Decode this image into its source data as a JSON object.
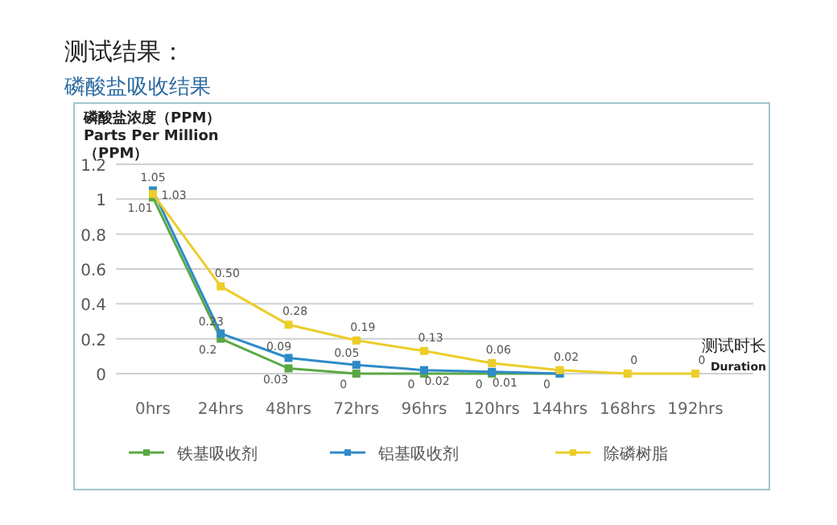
{
  "chart_data": {
    "type": "line",
    "title": "测试结果：",
    "subtitle": "磷酸盐吸收结果",
    "ylabel": "磷酸盐浓度（PPM）\nParts Per Million\n（PPM）",
    "xlabel": "测试时长\nDuration",
    "categories": [
      "0hrs",
      "24hrs",
      "48hrs",
      "72hrs",
      "96hrs",
      "120hrs",
      "144hrs",
      "168hrs",
      "192hrs"
    ],
    "series": [
      {
        "name": "铁基吸收剂",
        "color": "#5aa844",
        "values": [
          1.01,
          0.2,
          0.03,
          0,
          0,
          0,
          0,
          null,
          null
        ],
        "value_labels": [
          "1.01",
          "0.2",
          "0.03",
          "0",
          "0",
          "0",
          "0",
          null,
          null
        ]
      },
      {
        "name": "铝基吸收剂",
        "color": "#2f8ac8",
        "values": [
          1.05,
          0.23,
          0.09,
          0.05,
          0.02,
          0.01,
          0,
          null,
          null
        ],
        "value_labels": [
          "1.05",
          "0.23",
          "0.09",
          "0.05",
          "0.02",
          "0.01",
          null,
          null,
          null
        ]
      },
      {
        "name": "除磷树脂",
        "color": "#eccd2a",
        "values": [
          1.03,
          0.5,
          0.28,
          0.19,
          0.13,
          0.06,
          0.02,
          0,
          0
        ],
        "value_labels": [
          "1.03",
          "0.50",
          "0.28",
          "0.19",
          "0.13",
          "0.06",
          "0.02",
          "0",
          "0"
        ]
      }
    ],
    "ylim": [
      0,
      1.2
    ],
    "yticks": [
      0,
      0.2,
      0.4,
      0.6,
      0.8,
      1,
      1.2
    ],
    "grid": "y",
    "legend": "bottom",
    "marker": "square",
    "line_style": "solid"
  }
}
